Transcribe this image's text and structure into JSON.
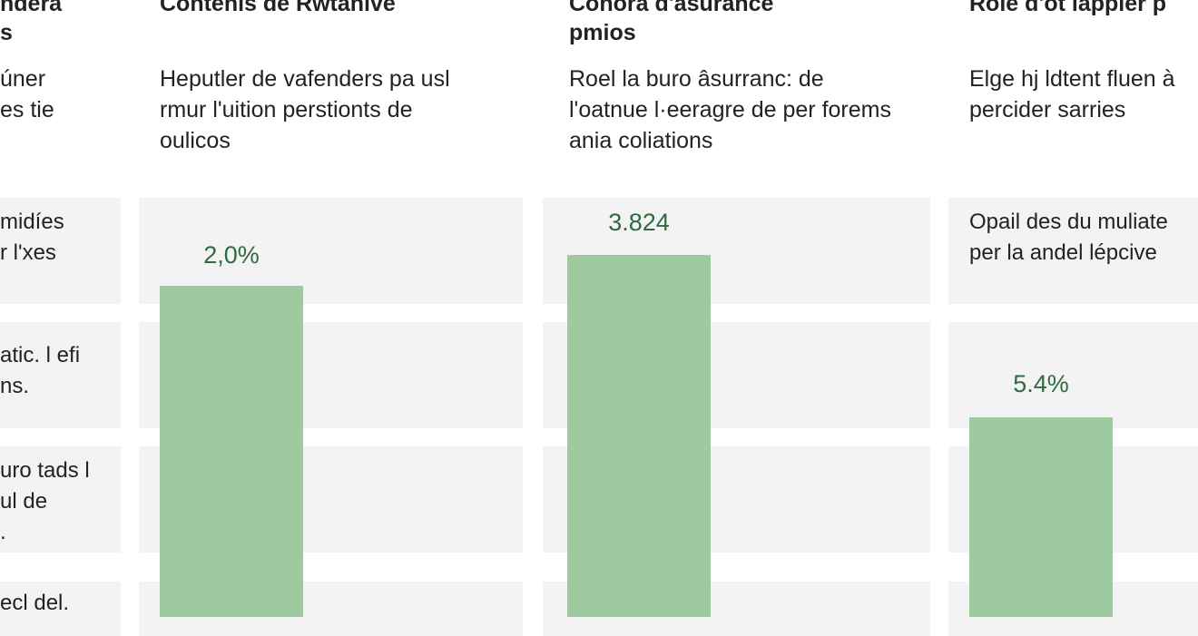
{
  "columns": [
    {
      "heading": [
        "ndera",
        "s"
      ],
      "description": [
        "úner",
        "es tie"
      ],
      "cells": [
        [
          "midíes",
          "r l'xes"
        ],
        [
          "atic. l efi",
          "ns."
        ],
        [
          "uro tads l",
          "ul de",
          "."
        ],
        [
          "ecl del."
        ]
      ]
    },
    {
      "heading": [
        "Contenis de Rwtanive"
      ],
      "description": [
        "Heputler de vafenders pa usl",
        "rmur l'uition perstionts de",
        "oulicos"
      ],
      "bar_label": "2,0%"
    },
    {
      "heading": [
        "Conora d'asurance",
        "pmios"
      ],
      "description": [
        "Roel la buro âsurranc: de",
        "l'oatnue l·eeragre de per forems",
        "ania coliations"
      ],
      "bar_label": "3.824"
    },
    {
      "heading": [
        "Role d'ot lappier p"
      ],
      "description": [
        "Elge hj ldtent fluen à",
        "percider sarries"
      ],
      "cells": [
        [
          "Opail des du muliate",
          "per la andel lépcive"
        ]
      ],
      "bar_label": "5.4%"
    }
  ]
}
